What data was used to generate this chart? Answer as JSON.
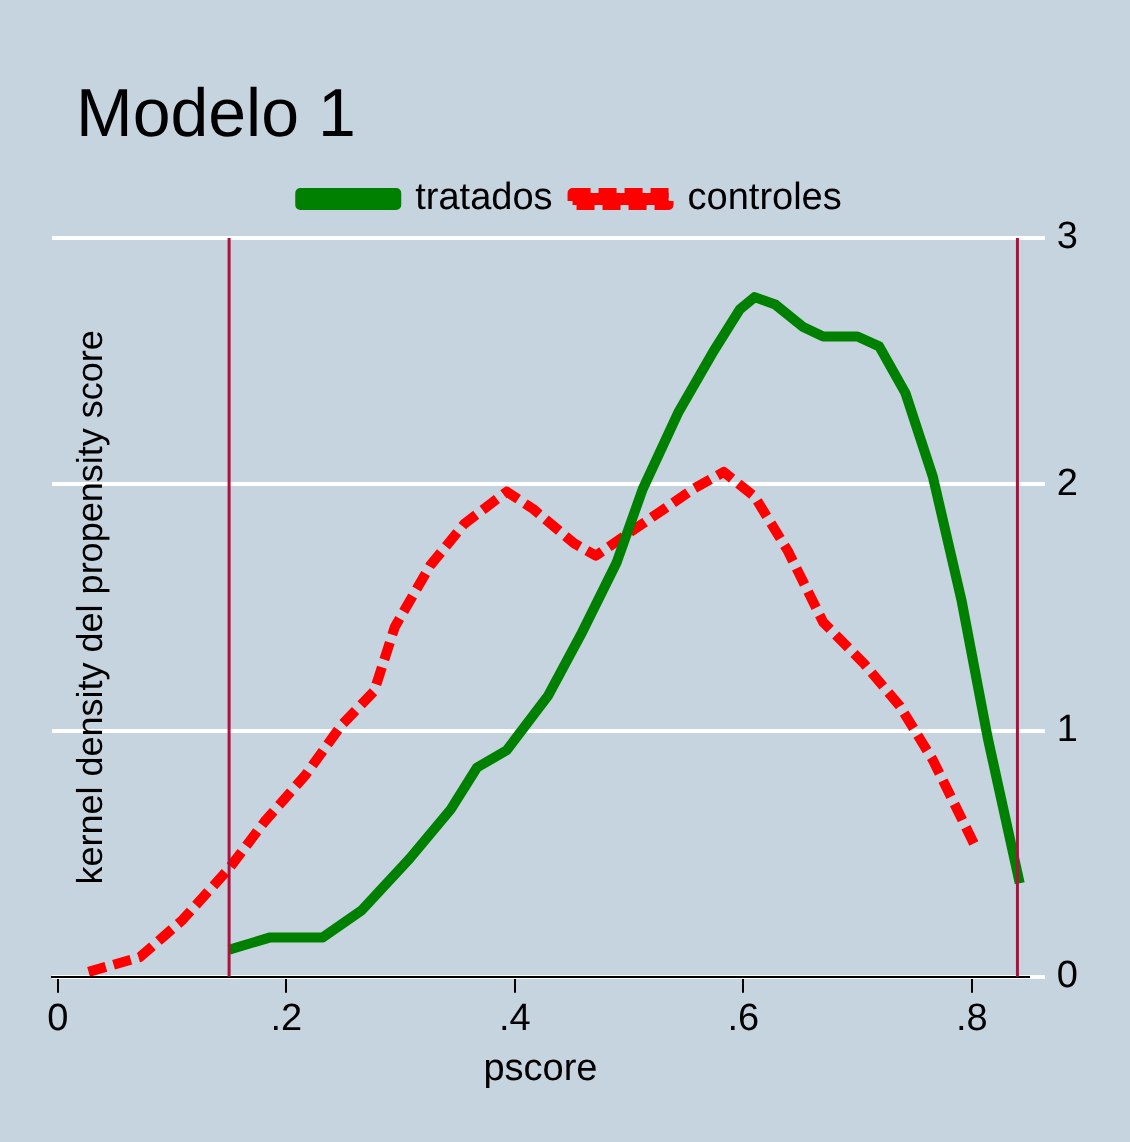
{
  "chart_data": {
    "type": "line",
    "title": "Modelo 1",
    "xlabel": "pscore",
    "ylabel": "kernel density del propensity score",
    "xlim": [
      -0.005,
      0.85
    ],
    "xticks": [
      {
        "value": 0,
        "label": "0"
      },
      {
        "value": 0.2,
        "label": ".2"
      },
      {
        "value": 0.4,
        "label": ".4"
      },
      {
        "value": 0.6,
        "label": ".6"
      },
      {
        "value": 0.8,
        "label": ".8"
      }
    ],
    "ylim": [
      0,
      3
    ],
    "yticks": [
      0,
      1,
      2,
      3
    ],
    "grid": "y",
    "legend": "top",
    "marker": "none",
    "series": [
      {
        "name": "tratados",
        "color": "#008000",
        "line_style": "solid",
        "x": [
          0.15,
          0.186,
          0.232,
          0.266,
          0.308,
          0.344,
          0.367,
          0.393,
          0.429,
          0.458,
          0.489,
          0.512,
          0.543,
          0.574,
          0.597,
          0.61,
          0.628,
          0.652,
          0.67,
          0.7,
          0.719,
          0.742,
          0.766,
          0.791,
          0.814,
          0.842
        ],
        "values": [
          0.11,
          0.16,
          0.16,
          0.27,
          0.48,
          0.68,
          0.85,
          0.92,
          1.14,
          1.39,
          1.68,
          1.98,
          2.29,
          2.54,
          2.71,
          2.76,
          2.73,
          2.64,
          2.6,
          2.6,
          2.56,
          2.37,
          2.03,
          1.53,
          0.97,
          0.38
        ]
      },
      {
        "name": "controles",
        "color": "#ff0000",
        "line_style": "dashed",
        "x": [
          0.027,
          0.072,
          0.109,
          0.15,
          0.181,
          0.217,
          0.248,
          0.277,
          0.295,
          0.326,
          0.356,
          0.393,
          0.416,
          0.452,
          0.471,
          0.512,
          0.556,
          0.583,
          0.61,
          0.639,
          0.67,
          0.706,
          0.737,
          0.766,
          0.802
        ],
        "values": [
          0.02,
          0.08,
          0.23,
          0.44,
          0.63,
          0.82,
          1.02,
          1.16,
          1.42,
          1.67,
          1.84,
          1.97,
          1.9,
          1.76,
          1.71,
          1.84,
          1.98,
          2.05,
          1.95,
          1.73,
          1.44,
          1.27,
          1.1,
          0.88,
          0.54
        ]
      }
    ],
    "ref_lines": [
      {
        "axis": "x",
        "value": 0.15,
        "color": "#b0103c"
      },
      {
        "axis": "x",
        "value": 0.84,
        "color": "#b0103c"
      }
    ],
    "tick_labels": "xy"
  }
}
